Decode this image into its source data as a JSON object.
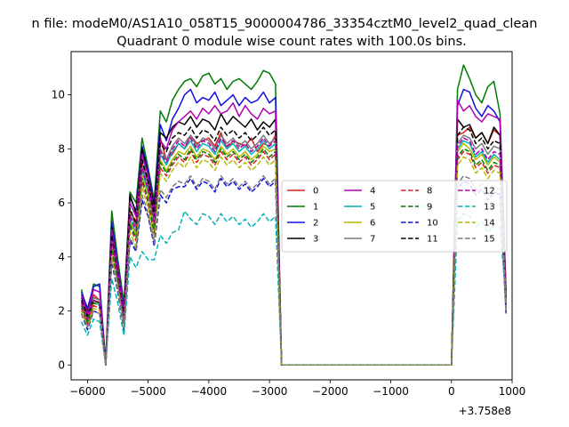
{
  "chart_data": {
    "type": "line",
    "suptitle": "n file: modeM0/AS1A10_058T15_9000004786_33354cztM0_level2_quad_clean",
    "title": "Quadrant 0 module wise count rates with 100.0s bins.",
    "xlabel": "",
    "ylabel": "",
    "x_offset_label": "+3.758e8",
    "xlim": [
      -6270,
      1000
    ],
    "ylim": [
      -0.55,
      11.6
    ],
    "grid": false,
    "legend_location": "center-right",
    "legend_columns": 4,
    "xticks": [
      -6000,
      -5000,
      -4000,
      -3000,
      -2000,
      -1000,
      0,
      1000
    ],
    "xtick_labels": [
      "−6000",
      "−5000",
      "−4000",
      "−3000",
      "−2000",
      "−1000",
      "0",
      "1000"
    ],
    "yticks": [
      0,
      2,
      4,
      6,
      8,
      10
    ],
    "ytick_labels": [
      "0",
      "2",
      "4",
      "6",
      "8",
      "10"
    ],
    "x": [
      -6100,
      -6000,
      -5900,
      -5800,
      -5700,
      -5600,
      -5500,
      -5400,
      -5300,
      -5200,
      -5100,
      -5000,
      -4900,
      -4800,
      -4700,
      -4600,
      -4500,
      -4400,
      -4300,
      -4200,
      -4100,
      -4000,
      -3900,
      -3800,
      -3700,
      -3600,
      -3500,
      -3400,
      -3300,
      -3200,
      -3100,
      -3000,
      -2900,
      -2800,
      0,
      100,
      200,
      300,
      400,
      500,
      600,
      700,
      800,
      900
    ],
    "series": [
      {
        "name": "0",
        "color": "#d62020",
        "dashed": false,
        "values": [
          2.6,
          1.8,
          2.6,
          2.4,
          0.0,
          4.6,
          3.3,
          1.8,
          5.7,
          5.3,
          7.5,
          6.8,
          5.5,
          8.4,
          7.6,
          7.8,
          8.2,
          8.0,
          8.5,
          8.2,
          8.3,
          8.4,
          8.1,
          8.6,
          8.0,
          8.3,
          8.2,
          8.1,
          8.4,
          7.9,
          8.2,
          8.1,
          8.5,
          0.0,
          0.0,
          8.5,
          8.6,
          8.8,
          8.4,
          8.6,
          8.2,
          8.7,
          8.5,
          2.5
        ]
      },
      {
        "name": "1",
        "color": "#007a00",
        "dashed": false,
        "values": [
          2.8,
          1.9,
          3.0,
          2.9,
          0.1,
          5.7,
          3.9,
          2.3,
          6.4,
          6.0,
          8.4,
          7.3,
          6.1,
          9.4,
          9.0,
          9.8,
          10.2,
          10.5,
          10.6,
          10.3,
          10.7,
          10.8,
          10.4,
          10.6,
          10.2,
          10.5,
          10.6,
          10.4,
          10.2,
          10.5,
          10.9,
          10.8,
          10.4,
          0.0,
          0.0,
          10.2,
          11.1,
          10.6,
          10.0,
          9.7,
          10.3,
          10.5,
          9.3,
          2.7
        ]
      },
      {
        "name": "2",
        "color": "#1010e0",
        "dashed": false,
        "values": [
          2.7,
          2.1,
          2.9,
          3.0,
          0.1,
          5.3,
          3.7,
          2.1,
          6.2,
          5.7,
          8.1,
          7.2,
          5.9,
          8.9,
          8.3,
          9.1,
          9.5,
          10.0,
          10.2,
          9.7,
          9.9,
          9.8,
          10.1,
          9.6,
          9.8,
          10.0,
          9.6,
          9.9,
          9.7,
          9.8,
          10.1,
          9.7,
          9.9,
          0.0,
          0.0,
          9.6,
          10.2,
          10.1,
          9.5,
          9.2,
          9.6,
          9.4,
          9.0,
          2.6
        ]
      },
      {
        "name": "3",
        "color": "#000000",
        "dashed": false,
        "values": [
          2.5,
          2.0,
          2.5,
          2.4,
          0.0,
          5.1,
          3.5,
          1.9,
          6.3,
          5.6,
          8.0,
          7.0,
          5.8,
          8.6,
          8.4,
          8.8,
          9.0,
          8.9,
          9.2,
          8.8,
          9.1,
          9.0,
          8.7,
          9.3,
          8.9,
          9.2,
          9.0,
          8.8,
          9.1,
          8.7,
          9.0,
          8.8,
          9.1,
          0.0,
          0.0,
          9.1,
          8.8,
          8.9,
          8.4,
          8.6,
          8.2,
          8.8,
          8.5,
          2.4
        ]
      },
      {
        "name": "4",
        "color": "#b000b0",
        "dashed": false,
        "values": [
          2.6,
          1.9,
          2.8,
          2.7,
          0.0,
          5.0,
          3.6,
          2.0,
          6.0,
          5.5,
          7.8,
          7.0,
          5.6,
          8.3,
          8.0,
          8.7,
          9.0,
          9.2,
          9.4,
          9.1,
          9.5,
          9.3,
          9.6,
          9.3,
          9.4,
          9.7,
          9.2,
          9.6,
          9.3,
          9.1,
          9.5,
          9.3,
          9.4,
          0.0,
          0.0,
          9.8,
          9.4,
          9.6,
          9.2,
          9.0,
          9.3,
          9.2,
          9.1,
          2.6
        ]
      },
      {
        "name": "5",
        "color": "#00b4b4",
        "dashed": false,
        "values": [
          2.3,
          1.5,
          2.4,
          2.2,
          0.0,
          4.5,
          3.1,
          1.6,
          5.4,
          4.9,
          7.2,
          6.4,
          5.1,
          7.8,
          7.4,
          7.9,
          8.2,
          8.0,
          8.3,
          7.9,
          8.2,
          8.1,
          7.8,
          8.3,
          8.0,
          8.2,
          7.9,
          8.1,
          7.8,
          8.0,
          8.3,
          8.0,
          8.2,
          0.0,
          0.0,
          8.0,
          8.3,
          8.2,
          7.7,
          7.9,
          7.5,
          7.8,
          7.6,
          2.3
        ]
      },
      {
        "name": "6",
        "color": "#b8b800",
        "dashed": false,
        "values": [
          2.2,
          1.6,
          2.3,
          2.3,
          0.0,
          4.4,
          3.2,
          1.6,
          5.3,
          4.8,
          7.0,
          6.3,
          5.0,
          7.6,
          7.2,
          7.6,
          7.9,
          7.8,
          8.1,
          7.7,
          8.0,
          7.9,
          7.6,
          8.1,
          7.8,
          8.0,
          7.7,
          7.9,
          7.6,
          7.8,
          8.1,
          7.9,
          8.0,
          0.0,
          0.0,
          7.9,
          8.2,
          8.0,
          7.6,
          7.8,
          7.4,
          7.7,
          7.5,
          2.2
        ]
      },
      {
        "name": "7",
        "color": "#7a7a7a",
        "dashed": false,
        "values": [
          2.4,
          1.7,
          2.5,
          2.4,
          0.0,
          4.7,
          3.3,
          1.7,
          5.6,
          5.1,
          7.4,
          6.6,
          5.3,
          8.0,
          7.6,
          8.1,
          8.4,
          8.2,
          8.5,
          8.1,
          8.4,
          8.3,
          8.0,
          8.5,
          8.2,
          8.4,
          8.1,
          8.3,
          8.0,
          8.2,
          8.5,
          8.2,
          8.4,
          0.0,
          0.0,
          8.2,
          8.5,
          8.4,
          8.0,
          8.2,
          7.8,
          8.1,
          8.0,
          2.4
        ]
      },
      {
        "name": "8",
        "color": "#d62020",
        "dashed": true,
        "values": [
          2.1,
          1.5,
          2.2,
          2.1,
          0.0,
          4.2,
          3.0,
          1.5,
          5.1,
          4.6,
          6.8,
          6.0,
          4.8,
          7.3,
          7.0,
          7.4,
          7.7,
          7.5,
          7.9,
          7.5,
          7.8,
          7.7,
          7.4,
          7.9,
          7.6,
          7.8,
          7.5,
          7.7,
          7.4,
          7.6,
          7.9,
          7.6,
          7.8,
          0.0,
          0.0,
          7.6,
          7.9,
          7.8,
          7.3,
          7.5,
          7.1,
          7.4,
          7.3,
          2.1
        ]
      },
      {
        "name": "9",
        "color": "#007a00",
        "dashed": true,
        "values": [
          2.2,
          1.6,
          2.3,
          2.2,
          0.0,
          4.3,
          3.1,
          1.6,
          5.2,
          4.7,
          6.9,
          6.1,
          4.9,
          7.5,
          7.1,
          7.5,
          7.8,
          7.6,
          8.0,
          7.6,
          7.9,
          7.8,
          7.5,
          8.0,
          7.7,
          7.9,
          7.6,
          7.8,
          7.5,
          7.7,
          8.0,
          7.7,
          7.9,
          0.0,
          0.0,
          7.7,
          8.0,
          7.9,
          7.4,
          7.6,
          7.2,
          7.5,
          7.4,
          2.2
        ]
      },
      {
        "name": "10",
        "color": "#1010e0",
        "dashed": true,
        "values": [
          1.9,
          1.3,
          2.0,
          1.9,
          0.0,
          3.8,
          2.7,
          1.3,
          4.6,
          4.2,
          6.1,
          5.5,
          4.4,
          6.3,
          6.0,
          6.5,
          6.6,
          6.6,
          6.9,
          6.5,
          6.8,
          6.7,
          6.4,
          6.9,
          6.6,
          6.8,
          6.5,
          6.7,
          6.4,
          6.6,
          6.9,
          6.6,
          6.8,
          0.0,
          0.0,
          6.5,
          6.8,
          6.7,
          6.3,
          6.5,
          6.1,
          6.4,
          6.3,
          1.9
        ]
      },
      {
        "name": "11",
        "color": "#000000",
        "dashed": true,
        "values": [
          2.4,
          1.8,
          2.4,
          2.3,
          0.0,
          4.8,
          3.4,
          1.8,
          5.8,
          5.2,
          7.6,
          6.8,
          5.5,
          8.2,
          7.9,
          8.4,
          8.6,
          8.5,
          8.8,
          8.4,
          8.7,
          8.6,
          8.3,
          8.8,
          8.5,
          8.7,
          8.4,
          8.6,
          8.3,
          8.5,
          8.8,
          8.5,
          8.7,
          0.0,
          0.0,
          8.5,
          8.8,
          8.7,
          8.2,
          8.4,
          8.0,
          8.3,
          8.2,
          2.4
        ]
      },
      {
        "name": "12",
        "color": "#b000b0",
        "dashed": true,
        "values": [
          2.3,
          1.7,
          2.4,
          2.3,
          0.0,
          4.6,
          3.3,
          1.7,
          5.5,
          5.0,
          7.3,
          6.5,
          5.2,
          7.9,
          7.5,
          8.0,
          8.3,
          8.1,
          8.4,
          8.0,
          8.3,
          8.2,
          7.9,
          8.4,
          8.1,
          8.3,
          8.0,
          8.2,
          7.9,
          8.1,
          8.4,
          8.1,
          8.3,
          0.0,
          0.0,
          8.1,
          8.4,
          8.3,
          7.8,
          8.0,
          7.6,
          7.9,
          7.8,
          2.3
        ]
      },
      {
        "name": "13",
        "color": "#00b4b4",
        "dashed": true,
        "values": [
          1.6,
          1.1,
          1.7,
          1.6,
          0.0,
          3.2,
          2.3,
          1.1,
          4.0,
          3.6,
          4.2,
          3.9,
          3.9,
          4.8,
          4.5,
          4.9,
          5.0,
          5.7,
          5.4,
          5.2,
          5.6,
          5.5,
          5.2,
          5.6,
          5.3,
          5.5,
          5.2,
          5.4,
          5.1,
          5.3,
          5.6,
          5.3,
          5.5,
          0.0,
          0.0,
          5.3,
          5.6,
          5.5,
          5.1,
          5.3,
          4.9,
          5.2,
          5.1,
          2.4
        ]
      },
      {
        "name": "14",
        "color": "#b8b800",
        "dashed": true,
        "values": [
          2.0,
          1.4,
          2.1,
          2.0,
          0.0,
          4.0,
          2.9,
          1.4,
          4.9,
          4.4,
          6.6,
          5.8,
          4.6,
          7.1,
          6.8,
          7.2,
          7.5,
          7.3,
          7.7,
          7.3,
          7.6,
          7.5,
          7.2,
          7.7,
          7.4,
          7.6,
          7.3,
          7.5,
          7.2,
          7.4,
          7.7,
          7.4,
          7.6,
          0.0,
          0.0,
          7.4,
          7.7,
          7.6,
          7.1,
          7.3,
          6.9,
          7.2,
          7.1,
          2.0
        ]
      },
      {
        "name": "15",
        "color": "#7a7a7a",
        "dashed": true,
        "values": [
          1.9,
          1.4,
          2.0,
          1.9,
          0.0,
          3.9,
          2.8,
          1.4,
          4.7,
          4.3,
          6.3,
          5.6,
          4.5,
          6.5,
          6.2,
          6.6,
          6.8,
          6.7,
          7.0,
          6.6,
          6.9,
          6.8,
          6.5,
          7.0,
          6.7,
          6.9,
          6.6,
          6.8,
          6.5,
          6.7,
          7.0,
          6.7,
          6.9,
          0.0,
          0.0,
          6.7,
          7.0,
          6.9,
          6.5,
          6.7,
          6.3,
          6.6,
          6.5,
          1.9
        ]
      }
    ]
  }
}
